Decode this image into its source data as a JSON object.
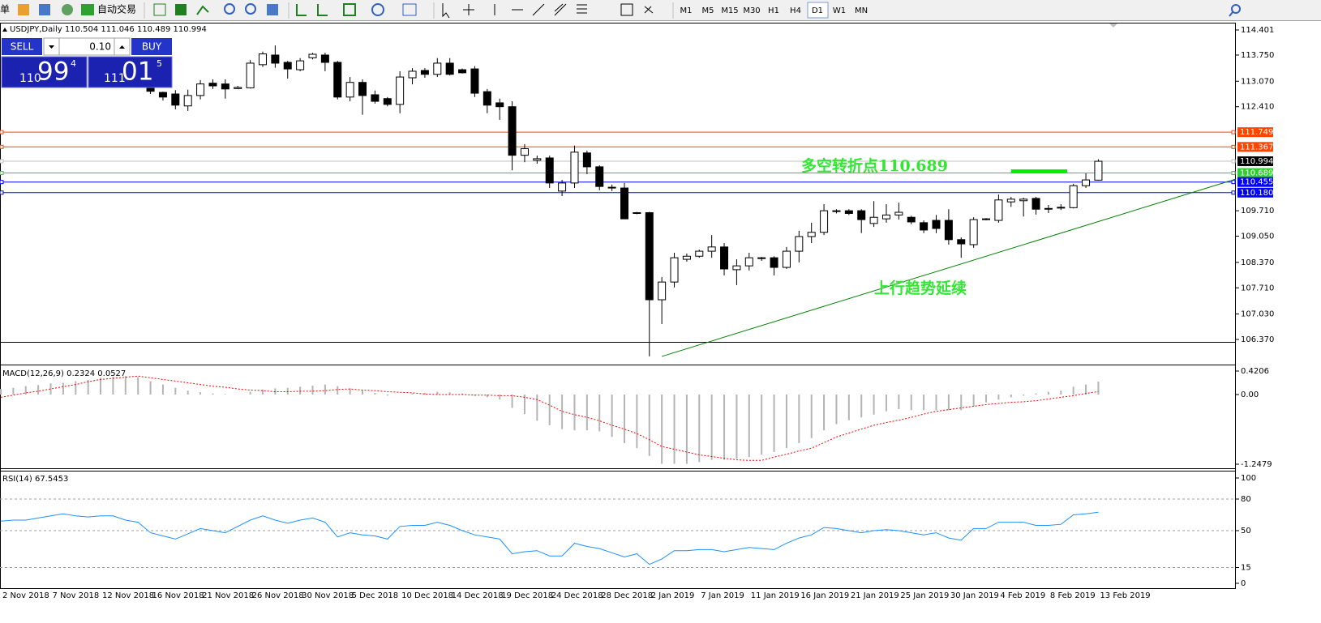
{
  "toolbar": {
    "menu_fragment": "单",
    "auto_trade": "自动交易",
    "timeframes": [
      "M1",
      "M5",
      "M15",
      "M30",
      "H1",
      "H4",
      "D1",
      "W1",
      "MN"
    ],
    "active_timeframe": 6
  },
  "trade_panel": {
    "sell": "SELL",
    "buy": "BUY",
    "lot": "0.10",
    "bid": {
      "big": "110",
      "main": "99",
      "sup": "4"
    },
    "ask": {
      "big": "111",
      "main": "01",
      "sup": "5"
    }
  },
  "annotations": [
    {
      "text": "多空转折点110.689",
      "color": "#33e633"
    },
    {
      "text": "上行趋势延续",
      "color": "#33e633"
    }
  ],
  "chart_data": [
    {
      "type": "candlestick",
      "title": "USDJPY,Daily  110.504 111.046 110.489 110.994",
      "categories": [
        "2 Nov 2018",
        null,
        null,
        null,
        "7 Nov 2018",
        null,
        null,
        null,
        "12 Nov 2018",
        null,
        null,
        null,
        "16 Nov 2018",
        null,
        null,
        null,
        "21 Nov 2018",
        null,
        null,
        null,
        "26 Nov 2018",
        null,
        null,
        null,
        "30 Nov 2018",
        null,
        null,
        null,
        "5 Dec 2018",
        null,
        null,
        null,
        "10 Dec 2018",
        null,
        null,
        null,
        "14 Dec 2018",
        null,
        null,
        null,
        "19 Dec 2018",
        null,
        null,
        null,
        "24 Dec 2018",
        null,
        null,
        null,
        "28 Dec 2018",
        null,
        null,
        null,
        "2 Jan 2019",
        null,
        null,
        null,
        "7 Jan 2019",
        null,
        null,
        null,
        "11 Jan 2019",
        null,
        null,
        null,
        "16 Jan 2019",
        null,
        null,
        null,
        "21 Jan 2019",
        null,
        null,
        null,
        "25 Jan 2019",
        null,
        null,
        null,
        "30 Jan 2019",
        null,
        null,
        null,
        "4 Feb 2019",
        null,
        null,
        null,
        "8 Feb 2019",
        null,
        null,
        null,
        "13 Feb 2019"
      ],
      "open": [
        null,
        null,
        null,
        null,
        null,
        null,
        null,
        null,
        null,
        null,
        null,
        null,
        112.93,
        112.78,
        112.74,
        112.43,
        112.7,
        113.02,
        113.0,
        112.88,
        112.9,
        113.5,
        113.75,
        113.56,
        113.37,
        113.68,
        113.75,
        113.56,
        112.66,
        113.04,
        112.72,
        112.62,
        112.47,
        113.16,
        113.35,
        113.25,
        113.54,
        113.37,
        113.39,
        112.8,
        112.51,
        112.41,
        111.15,
        111.02,
        111.08,
        110.22,
        110.43,
        111.21,
        110.85,
        110.32,
        110.3,
        109.66,
        109.66,
        107.4,
        107.86,
        108.45,
        108.53,
        108.66,
        108.77,
        108.18,
        108.28,
        108.47,
        108.49,
        108.24,
        108.66,
        109.04,
        109.15,
        109.69,
        109.71,
        109.71,
        109.38,
        109.5,
        109.6,
        109.54,
        109.4,
        109.46,
        109.46,
        108.96,
        108.83,
        109.48,
        109.46,
        109.94,
        109.97,
        110.03,
        109.75,
        109.79,
        109.79,
        110.36,
        110.504
      ],
      "high": [
        null,
        null,
        null,
        null,
        null,
        null,
        null,
        null,
        null,
        null,
        null,
        null,
        113.0,
        112.8,
        112.84,
        112.85,
        113.1,
        113.12,
        113.12,
        112.95,
        113.62,
        113.84,
        114.0,
        113.6,
        113.67,
        113.81,
        113.81,
        113.6,
        113.18,
        113.12,
        112.83,
        112.66,
        113.33,
        113.41,
        113.41,
        113.67,
        113.67,
        113.4,
        113.46,
        112.87,
        112.62,
        112.55,
        111.44,
        111.14,
        111.14,
        110.51,
        111.4,
        111.27,
        110.89,
        110.39,
        110.43,
        109.68,
        109.68,
        107.99,
        108.62,
        108.6,
        108.7,
        109.08,
        108.87,
        108.45,
        108.62,
        108.51,
        108.53,
        108.77,
        109.19,
        109.4,
        109.88,
        109.75,
        109.75,
        109.75,
        109.96,
        109.88,
        109.92,
        109.58,
        109.46,
        109.6,
        109.75,
        109.02,
        109.54,
        109.52,
        110.13,
        110.07,
        110.05,
        110.07,
        109.86,
        109.88,
        110.41,
        110.68,
        111.046
      ],
      "low": [
        null,
        null,
        null,
        null,
        null,
        null,
        null,
        null,
        null,
        null,
        null,
        null,
        112.74,
        112.57,
        112.34,
        112.3,
        112.6,
        112.87,
        112.62,
        112.87,
        112.88,
        113.44,
        113.42,
        113.14,
        113.33,
        113.64,
        113.33,
        112.6,
        112.55,
        112.2,
        112.49,
        112.42,
        112.24,
        112.99,
        113.16,
        113.18,
        113.22,
        113.27,
        112.66,
        112.24,
        112.07,
        110.76,
        110.97,
        110.93,
        110.3,
        110.09,
        110.3,
        110.66,
        110.24,
        110.22,
        109.5,
        109.62,
        105.93,
        106.77,
        107.72,
        108.39,
        108.49,
        108.49,
        108.03,
        107.78,
        108.16,
        108.41,
        108.03,
        108.2,
        108.37,
        108.87,
        109.08,
        109.64,
        109.6,
        109.13,
        109.29,
        109.4,
        109.48,
        109.36,
        109.13,
        109.13,
        108.83,
        108.49,
        108.75,
        109.46,
        109.4,
        109.81,
        109.56,
        109.61,
        109.65,
        109.73,
        109.77,
        110.3,
        110.489
      ],
      "close": [
        null,
        null,
        null,
        null,
        null,
        null,
        null,
        null,
        null,
        null,
        null,
        null,
        112.81,
        112.66,
        112.45,
        112.7,
        113.0,
        112.95,
        112.87,
        112.91,
        113.54,
        113.78,
        113.54,
        113.39,
        113.6,
        113.77,
        113.56,
        112.66,
        113.04,
        112.7,
        112.55,
        112.47,
        113.18,
        113.33,
        113.25,
        113.54,
        113.25,
        113.29,
        112.76,
        112.45,
        112.41,
        111.15,
        111.32,
        111.06,
        110.43,
        110.43,
        111.23,
        110.85,
        110.34,
        110.3,
        109.5,
        109.64,
        107.4,
        107.86,
        108.49,
        108.53,
        108.66,
        108.77,
        108.2,
        108.28,
        108.49,
        108.49,
        108.24,
        108.66,
        109.04,
        109.15,
        109.71,
        109.71,
        109.64,
        109.48,
        109.54,
        109.6,
        109.67,
        109.42,
        109.21,
        109.25,
        108.96,
        108.85,
        109.48,
        109.5,
        109.99,
        110.01,
        110.01,
        109.75,
        109.77,
        109.8,
        110.36,
        110.51,
        110.994
      ],
      "up_color": "#ffffff",
      "down_color": "#000000",
      "ylim": [
        106.307,
        114.548
      ],
      "yticks": [
        114.401,
        {
          "value": 113.75,
          "label": "113.750"
        },
        {
          "value": 113.07,
          "label": "113.070"
        },
        {
          "value": 112.41,
          "label": "112.410"
        },
        {
          "value": 109.71,
          "label": "109.710"
        },
        {
          "value": 109.05,
          "label": "109.050"
        },
        {
          "value": 108.37,
          "label": "108.370"
        },
        {
          "value": 107.71,
          "label": "107.710"
        },
        {
          "value": 107.03,
          "label": "107.030"
        },
        {
          "value": 106.37,
          "label": "106.370"
        }
      ],
      "levels": [
        {
          "value": 111.749,
          "label": "111.749",
          "color": "#ff4500",
          "line": "#ff4500"
        },
        {
          "value": 111.367,
          "label": "111.367",
          "color": "#ff4500",
          "line": "#ff4500"
        },
        {
          "value": 110.994,
          "label": "110.994",
          "color": "#000000",
          "line": "#c0c0c0"
        },
        {
          "value": 110.689,
          "label": "110.689",
          "color": "#32cd32",
          "line": "#32cd32"
        },
        {
          "value": 110.455,
          "label": "110.455",
          "color": "#0000ff",
          "line": "#0000ff"
        },
        {
          "value": 110.18,
          "label": "110.180",
          "color": "#0000ff",
          "line": "#0000ff"
        }
      ],
      "trendline": {
        "color": "#008000",
        "x": [
          53,
          99
        ],
        "values": [
          105.93,
          110.53
        ]
      },
      "marker": {
        "color": "#00ee00",
        "x": [
          81,
          85.5
        ],
        "value": 110.73
      }
    },
    {
      "type": "macd",
      "title": "MACD(12,26,9) 0.2324 0.0527",
      "ylim": [
        -1.2479,
        0.4206
      ],
      "yticks": [
        0.4206,
        {
          "value": 0,
          "label": "0.00"
        },
        -1.2479
      ],
      "histogram_color": "#b4b4b4",
      "signal_color": "#ff0000",
      "histogram": [
        0.1,
        0.12,
        0.15,
        0.17,
        0.2,
        0.21,
        0.24,
        0.26,
        0.3,
        0.32,
        0.33,
        0.31,
        0.24,
        0.18,
        0.12,
        0.07,
        0.04,
        0.02,
        0.01,
        0.0,
        0.05,
        0.09,
        0.11,
        0.12,
        0.14,
        0.16,
        0.18,
        0.15,
        0.11,
        0.07,
        0.03,
        -0.02,
        0.0,
        0.02,
        0.03,
        0.05,
        0.04,
        0.02,
        -0.02,
        -0.05,
        -0.09,
        -0.24,
        -0.35,
        -0.47,
        -0.55,
        -0.62,
        -0.64,
        -0.64,
        -0.66,
        -0.76,
        -0.87,
        -0.96,
        -1.1,
        -1.24,
        -1.24,
        -1.24,
        -1.21,
        -1.17,
        -1.17,
        -1.15,
        -1.12,
        -1.08,
        -1.03,
        -0.96,
        -0.87,
        -0.78,
        -0.64,
        -0.53,
        -0.46,
        -0.41,
        -0.36,
        -0.3,
        -0.26,
        -0.28,
        -0.28,
        -0.28,
        -0.28,
        -0.28,
        -0.21,
        -0.14,
        -0.09,
        -0.05,
        -0.02,
        0.02,
        0.05,
        0.07,
        0.14,
        0.18,
        0.2324
      ],
      "signal": [
        -0.05,
        -0.01,
        0.03,
        0.06,
        0.1,
        0.14,
        0.18,
        0.23,
        0.27,
        0.29,
        0.31,
        0.33,
        0.3,
        0.27,
        0.24,
        0.21,
        0.18,
        0.15,
        0.13,
        0.1,
        0.08,
        0.07,
        0.05,
        0.05,
        0.06,
        0.06,
        0.07,
        0.09,
        0.1,
        0.08,
        0.07,
        0.05,
        0.04,
        0.03,
        0.01,
        0.0,
        0.0,
        0.0,
        -0.01,
        -0.01,
        -0.02,
        -0.02,
        -0.05,
        -0.09,
        -0.19,
        -0.3,
        -0.36,
        -0.41,
        -0.47,
        -0.55,
        -0.62,
        -0.7,
        -0.81,
        -0.93,
        -0.98,
        -1.03,
        -1.08,
        -1.11,
        -1.14,
        -1.17,
        -1.18,
        -1.18,
        -1.12,
        -1.07,
        -1.01,
        -0.96,
        -0.86,
        -0.76,
        -0.69,
        -0.62,
        -0.55,
        -0.5,
        -0.46,
        -0.41,
        -0.35,
        -0.3,
        -0.27,
        -0.24,
        -0.21,
        -0.18,
        -0.16,
        -0.14,
        -0.13,
        -0.11,
        -0.08,
        -0.05,
        -0.02,
        0.02,
        0.0527
      ]
    },
    {
      "type": "rsi",
      "title": "RSI(14) 67.5453",
      "ylim": [
        0,
        100
      ],
      "yticks": [
        0,
        15,
        50,
        80,
        100
      ],
      "color": "#1e90ff",
      "values": [
        59,
        60,
        60,
        62,
        64,
        66,
        64,
        63,
        64,
        64,
        60,
        58,
        48,
        45,
        42,
        47,
        52,
        50,
        48,
        54,
        60,
        64,
        60,
        57,
        60,
        62,
        58,
        44,
        48,
        46,
        45,
        42,
        54,
        55,
        55,
        58,
        55,
        50,
        46,
        44,
        42,
        28,
        30,
        31,
        26,
        26,
        38,
        35,
        33,
        29,
        25,
        28,
        18,
        23,
        31,
        31,
        32,
        32,
        30,
        32,
        34,
        33,
        32,
        38,
        43,
        46,
        53,
        52,
        50,
        48,
        50,
        51,
        50,
        48,
        46,
        48,
        43,
        41,
        52,
        52,
        58,
        58,
        58,
        55,
        55,
        56,
        65,
        66,
        67.5453
      ]
    }
  ]
}
